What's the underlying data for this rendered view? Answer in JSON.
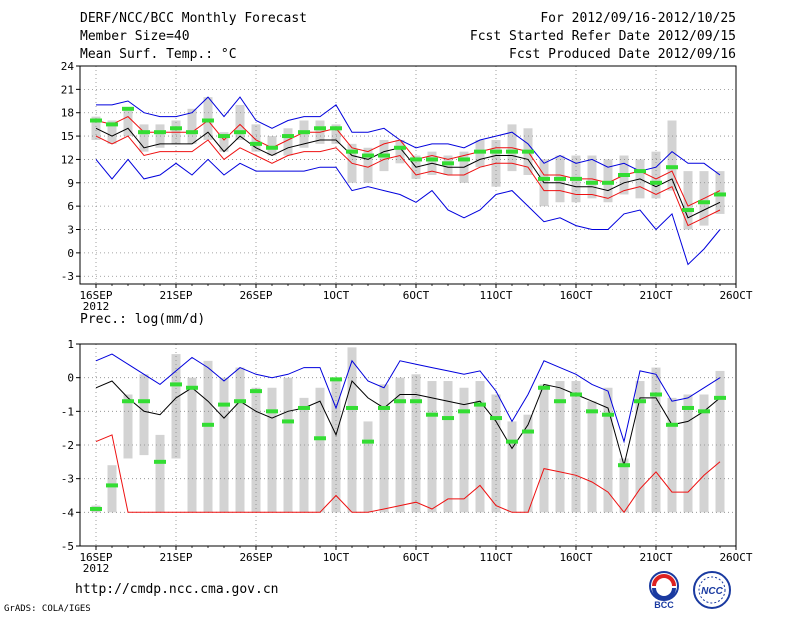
{
  "header": {
    "line1": "DERF/NCC/BCC Monthly Forecast",
    "line2": "Member Size=40",
    "line3": "Mean Surf. Temp.: °C",
    "right1": "For 2012/09/16-2012/10/25",
    "right2": "Fcst Started Refer Date 2012/09/15",
    "right3": "Fcst Produced Date 2012/09/16"
  },
  "footer": {
    "url": "http://cmdp.ncc.cma.gov.cn",
    "grads": "GrADS: COLA/IGES",
    "logo1_text": "BCC",
    "logo2_text": "NCC"
  },
  "colors": {
    "upper": "#0000dd",
    "mid": "#000000",
    "lower": "#ee1111",
    "bar": "#d3d3d3",
    "marker": "#33dd33",
    "grid": "#888888"
  },
  "chart_data": [
    {
      "type": "line",
      "title": "Mean Surf. Temp.: °C",
      "xlabel": "",
      "ylabel": "",
      "x": [
        1,
        2,
        3,
        4,
        5,
        6,
        7,
        8,
        9,
        10,
        11,
        12,
        13,
        14,
        15,
        16,
        17,
        18,
        19,
        20,
        21,
        22,
        23,
        24,
        25,
        26,
        27,
        28,
        29,
        30,
        31,
        32,
        33,
        34,
        35,
        36,
        37,
        38,
        39,
        40
      ],
      "xticks": [
        {
          "x": 1,
          "label": "16SEP"
        },
        {
          "x": 6,
          "label": "21SEP"
        },
        {
          "x": 11,
          "label": "26SEP"
        },
        {
          "x": 16,
          "label": "1OCT"
        },
        {
          "x": 21,
          "label": "6OCT"
        },
        {
          "x": 26,
          "label": "11OCT"
        },
        {
          "x": 31,
          "label": "16OCT"
        },
        {
          "x": 36,
          "label": "21OCT"
        },
        {
          "x": 41,
          "label": "26OCT"
        }
      ],
      "year_label": "2012",
      "ylim": [
        -4,
        24
      ],
      "yticks": [
        -3,
        0,
        3,
        6,
        9,
        12,
        15,
        18,
        21,
        24
      ],
      "grid": true,
      "series": [
        {
          "name": "max",
          "values": [
            19,
            19,
            19.5,
            18,
            17.5,
            17.5,
            18,
            20,
            17.5,
            20,
            17,
            16,
            17,
            17.5,
            17.5,
            19,
            15.5,
            15.5,
            16,
            14.5,
            13.5,
            14,
            14,
            13.5,
            14.5,
            15,
            15.5,
            14,
            11.5,
            12.5,
            11.5,
            12,
            11,
            11.5,
            10.5,
            11,
            13,
            11.5,
            11.5,
            10
          ]
        },
        {
          "name": "upper",
          "values": [
            17,
            16.5,
            17.5,
            15.5,
            15.5,
            15.5,
            15.5,
            17,
            14.5,
            16.5,
            14.5,
            13.5,
            14.5,
            15.5,
            15.5,
            16,
            13.5,
            13,
            14,
            14.5,
            12,
            12.5,
            12,
            12.5,
            13,
            13.5,
            13.5,
            13,
            10,
            10,
            9.5,
            9.5,
            9,
            10,
            10.5,
            9.5,
            10.5,
            6,
            7,
            8
          ]
        },
        {
          "name": "mean",
          "values": [
            16,
            15,
            16,
            13.5,
            14,
            14,
            14,
            15.5,
            13,
            15,
            13.5,
            12.5,
            13.5,
            14,
            14.5,
            14.5,
            12.5,
            12,
            13,
            13.5,
            11,
            11.5,
            11,
            11,
            12,
            12.5,
            12.5,
            12,
            9,
            9,
            8.5,
            8.5,
            8,
            9,
            9.5,
            8.5,
            9.5,
            4.5,
            5.5,
            6.5
          ]
        },
        {
          "name": "lower",
          "values": [
            15,
            14,
            15,
            12.5,
            13,
            13,
            13,
            14.5,
            12,
            13.5,
            12.5,
            11.5,
            12.5,
            13,
            13,
            13.5,
            11.5,
            11,
            12,
            12.5,
            10,
            10.5,
            10,
            10,
            11,
            11.5,
            11.5,
            11,
            8,
            8,
            7.5,
            7.5,
            7,
            8,
            8.5,
            7.5,
            8.5,
            3.5,
            4.5,
            5.5
          ]
        },
        {
          "name": "min",
          "values": [
            12,
            9.5,
            12,
            9.5,
            10,
            11.5,
            10,
            12,
            10,
            11.5,
            10.5,
            10.5,
            10.5,
            10.5,
            11,
            11,
            8,
            8.5,
            8,
            7.5,
            6.5,
            8,
            5.5,
            4.5,
            5.5,
            7.5,
            8,
            6,
            4,
            4.5,
            3.5,
            3,
            3,
            5,
            5.5,
            3,
            5,
            -1.5,
            0.5,
            3
          ]
        },
        {
          "name": "bar_low",
          "values": [
            14.5,
            14,
            15,
            13,
            13.5,
            14,
            14,
            14.5,
            13,
            14.5,
            13,
            12.5,
            12.5,
            13.5,
            14,
            14,
            9,
            9,
            10.5,
            11.5,
            9.5,
            10,
            10,
            9,
            11,
            8.5,
            10.5,
            10,
            6,
            6.5,
            6.5,
            7,
            6.5,
            7.5,
            7,
            7,
            8,
            3,
            3.5,
            5
          ]
        },
        {
          "name": "bar_high",
          "values": [
            17.5,
            17,
            18.5,
            16.5,
            16.5,
            17,
            18.5,
            20,
            15.5,
            19,
            16.5,
            15,
            16,
            17,
            17,
            16.5,
            14,
            13.5,
            14.5,
            14.5,
            12.5,
            13,
            12.5,
            13,
            14.5,
            14.5,
            16.5,
            16,
            12,
            12.5,
            12.5,
            12.5,
            12,
            12.5,
            12,
            13,
            17,
            10.5,
            10.5,
            10.5
          ]
        },
        {
          "name": "marker",
          "values": [
            17,
            16.5,
            18.5,
            15.5,
            15.5,
            16,
            15.5,
            17,
            15,
            15.5,
            14,
            13.5,
            15,
            15.5,
            16,
            16,
            13,
            12.5,
            12.5,
            13.5,
            12,
            12,
            11.5,
            12,
            13,
            13,
            13,
            13,
            9.5,
            9.5,
            9.5,
            9,
            9,
            10,
            10.5,
            9,
            11,
            5.5,
            6.5,
            7.5
          ]
        }
      ]
    },
    {
      "type": "line",
      "title": "Prec.: log(mm/d)",
      "xlabel": "",
      "ylabel": "",
      "x": [
        1,
        2,
        3,
        4,
        5,
        6,
        7,
        8,
        9,
        10,
        11,
        12,
        13,
        14,
        15,
        16,
        17,
        18,
        19,
        20,
        21,
        22,
        23,
        24,
        25,
        26,
        27,
        28,
        29,
        30,
        31,
        32,
        33,
        34,
        35,
        36,
        37,
        38,
        39,
        40
      ],
      "xticks": [
        {
          "x": 1,
          "label": "16SEP"
        },
        {
          "x": 6,
          "label": "21SEP"
        },
        {
          "x": 11,
          "label": "26SEP"
        },
        {
          "x": 16,
          "label": "1OCT"
        },
        {
          "x": 21,
          "label": "6OCT"
        },
        {
          "x": 26,
          "label": "11OCT"
        },
        {
          "x": 31,
          "label": "16OCT"
        },
        {
          "x": 36,
          "label": "21OCT"
        },
        {
          "x": 41,
          "label": "26OCT"
        }
      ],
      "year_label": "2012",
      "ylim": [
        -5,
        1
      ],
      "yticks": [
        -5,
        -4,
        -3,
        -2,
        -1,
        0,
        1
      ],
      "grid": true,
      "series": [
        {
          "name": "upper",
          "values": [
            0.5,
            0.7,
            0.4,
            0.1,
            -0.2,
            0.2,
            0.6,
            0.3,
            -0.1,
            0.3,
            0.1,
            0,
            0.1,
            0.3,
            0.3,
            -0.9,
            0.5,
            -0.1,
            -0.3,
            0.5,
            0.4,
            0.3,
            0.2,
            0.1,
            0.2,
            -0.4,
            -1.3,
            -0.5,
            0.5,
            0.3,
            0.1,
            -0.2,
            -0.4,
            -1.9,
            0.2,
            0.1,
            -0.7,
            -0.6,
            -0.3,
            0
          ]
        },
        {
          "name": "mean",
          "values": [
            -0.3,
            -0.1,
            -0.6,
            -1,
            -1.1,
            -0.6,
            -0.3,
            -0.7,
            -1.2,
            -0.7,
            -1,
            -1.2,
            -1,
            -0.9,
            -0.7,
            -1.7,
            -0.1,
            -0.6,
            -0.9,
            -0.5,
            -0.5,
            -0.6,
            -0.7,
            -0.8,
            -0.7,
            -1.3,
            -2.1,
            -1.4,
            -0.2,
            -0.3,
            -0.5,
            -0.7,
            -0.9,
            -2.6,
            -0.6,
            -0.6,
            -1.4,
            -1.3,
            -1,
            -0.6
          ]
        },
        {
          "name": "lower",
          "values": [
            -1.9,
            -1.7,
            -4,
            -4,
            -4,
            -4,
            -4,
            -4,
            -4,
            -4,
            -4,
            -4,
            -4,
            -4,
            -4,
            -3.5,
            -4,
            -4,
            -3.9,
            -3.8,
            -3.7,
            -3.9,
            -3.6,
            -3.6,
            -3.2,
            -3.8,
            -4,
            -4,
            -2.7,
            -2.8,
            -2.9,
            -3.1,
            -3.4,
            -4,
            -3.3,
            -2.8,
            -3.4,
            -3.4,
            -2.9,
            -2.5
          ]
        },
        {
          "name": "bar_low",
          "values": [
            -4,
            -4,
            -2.4,
            -2.3,
            -4,
            -2.4,
            -4,
            -4,
            -4,
            -4,
            -4,
            -4,
            -4,
            -4,
            -4,
            -4,
            -4,
            -4,
            -4,
            -4,
            -4,
            -4,
            -4,
            -4,
            -4,
            -4,
            -4,
            -4,
            -4,
            -4,
            -4,
            -4,
            -4,
            -4,
            -4,
            -4,
            -4,
            -4,
            -4,
            -4
          ]
        },
        {
          "name": "bar_high",
          "values": [
            -3.8,
            -2.6,
            -0.5,
            0.1,
            -1.7,
            0.7,
            0,
            0.5,
            0,
            0.3,
            -0.3,
            -0.3,
            0,
            -0.6,
            -0.3,
            -0.1,
            0.9,
            -1.3,
            -0.2,
            0,
            0.1,
            -0.1,
            -0.1,
            -0.3,
            -0.1,
            -0.5,
            -1.3,
            -1.1,
            -0.2,
            -0.1,
            -0.1,
            -0.7,
            -0.3,
            -2.4,
            -0.1,
            0.3,
            -0.6,
            -0.5,
            -0.5,
            0.2
          ]
        },
        {
          "name": "marker",
          "values": [
            -3.9,
            -3.2,
            -0.7,
            -0.7,
            -2.5,
            -0.2,
            -0.3,
            -1.4,
            -0.8,
            -0.7,
            -0.4,
            -1,
            -1.3,
            -0.9,
            -1.8,
            -0.05,
            -0.9,
            -1.9,
            -0.9,
            -0.7,
            -0.7,
            -1.1,
            -1.2,
            -1,
            -0.8,
            -1.2,
            -1.9,
            -1.6,
            -0.3,
            -0.7,
            -0.5,
            -1,
            -1.1,
            -2.6,
            -0.7,
            -0.5,
            -1.4,
            -0.9,
            -1,
            -0.6
          ]
        }
      ]
    }
  ]
}
